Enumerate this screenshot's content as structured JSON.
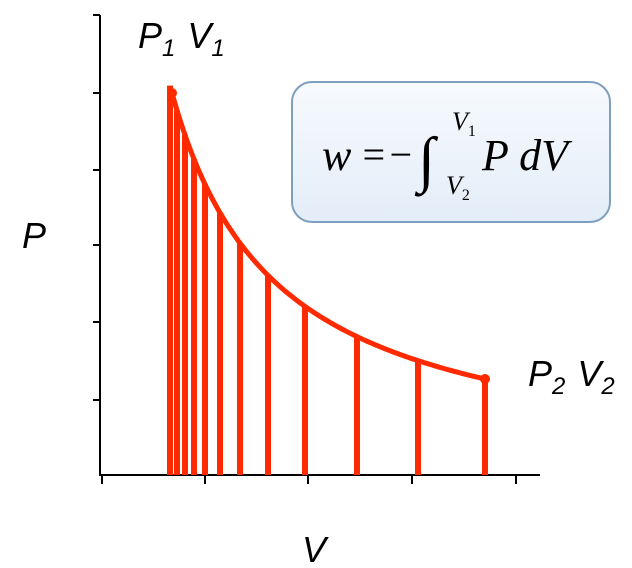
{
  "axes": {
    "y_label": "P",
    "x_label": "V"
  },
  "points": [
    {
      "p": "P",
      "p_sub": "1",
      "v": "V",
      "v_sub": "1"
    },
    {
      "p": "P",
      "p_sub": "2",
      "v": "V",
      "v_sub": "2"
    }
  ],
  "formula": {
    "lhs": "w",
    "operator": "=−",
    "integral": "∫",
    "upper": "V",
    "upper_sub": "1",
    "lower": "V",
    "lower_sub": "2",
    "integrand": "P dV"
  }
}
